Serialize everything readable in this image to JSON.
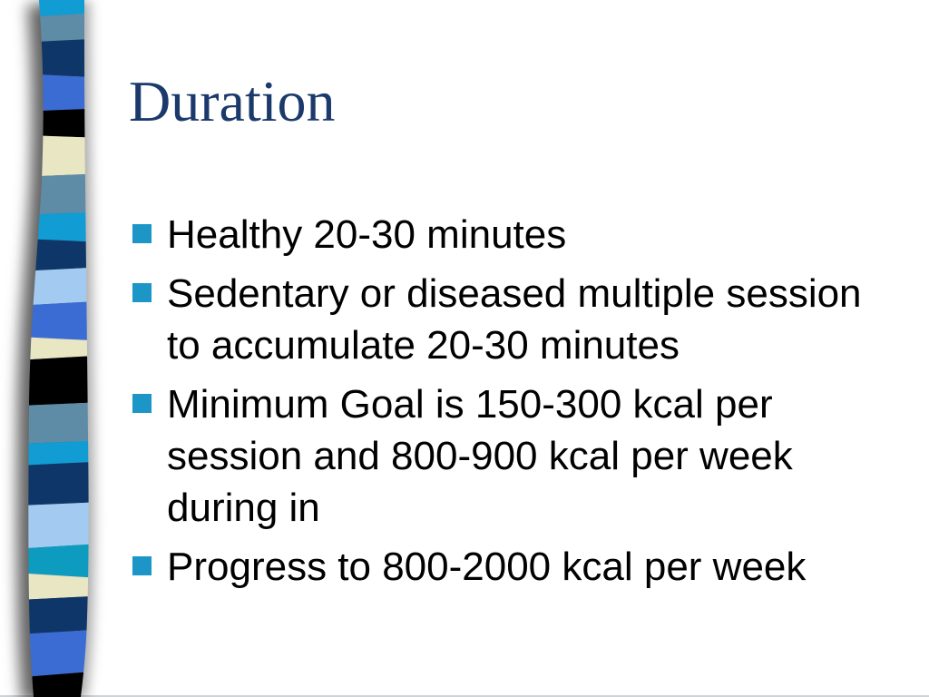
{
  "slide": {
    "title": "Duration",
    "title_color": "#1B3A6B",
    "text_color": "#000000",
    "bullet_marker_color": "#1C96C6",
    "background_color": "#FFFFFF",
    "bullets": [
      {
        "lines": [
          "Healthy 20-30 minutes"
        ]
      },
      {
        "lines": [
          "Sedentary or diseased multiple session",
          "to accumulate 20-30 minutes"
        ]
      },
      {
        "lines": [
          "Minimum Goal is 150-300 kcal per",
          "session and 800-900 kcal per week",
          "during in"
        ]
      },
      {
        "lines": [
          "Progress to 800-2000 kcal per week"
        ]
      }
    ]
  },
  "ribbon": {
    "description": "decorative wavy striped ribbon, left edge of slide",
    "stripes": [
      {
        "color": "#119CD3",
        "yLeft": 0,
        "yRight": 0
      },
      {
        "color": "#5E8CA6",
        "yLeft": 20,
        "yRight": 13
      },
      {
        "color": "#0F3668",
        "yLeft": 48,
        "yRight": 41
      },
      {
        "color": "#3B6CD4",
        "yLeft": 80,
        "yRight": 87
      },
      {
        "color": "#000000",
        "yLeft": 124,
        "yRight": 118
      },
      {
        "color": "#E9E6C4",
        "yLeft": 148,
        "yRight": 153
      },
      {
        "color": "#5E8CA6",
        "yLeft": 196,
        "yRight": 190
      },
      {
        "color": "#119CD3",
        "yLeft": 238,
        "yRight": 232
      },
      {
        "color": "#0F3668",
        "yLeft": 262,
        "yRight": 268
      },
      {
        "color": "#A3CBF2",
        "yLeft": 300,
        "yRight": 293
      },
      {
        "color": "#3B6CD4",
        "yLeft": 338,
        "yRight": 330
      },
      {
        "color": "#E9E6C4",
        "yLeft": 370,
        "yRight": 377
      },
      {
        "color": "#000000",
        "yLeft": 398,
        "yRight": 390
      },
      {
        "color": "#5E8CA6",
        "yLeft": 448,
        "yRight": 442
      },
      {
        "color": "#119CD3",
        "yLeft": 490,
        "yRight": 484
      },
      {
        "color": "#0F3668",
        "yLeft": 514,
        "yRight": 507
      },
      {
        "color": "#A3CBF2",
        "yLeft": 558,
        "yRight": 552
      },
      {
        "color": "#0D9BC0",
        "yLeft": 606,
        "yRight": 597
      },
      {
        "color": "#E9E6C4",
        "yLeft": 630,
        "yRight": 639
      },
      {
        "color": "#0F3668",
        "yLeft": 662,
        "yRight": 655
      },
      {
        "color": "#3B6CD4",
        "yLeft": 700,
        "yRight": 692
      },
      {
        "color": "#000000",
        "yLeft": 748,
        "yRight": 737
      }
    ]
  }
}
